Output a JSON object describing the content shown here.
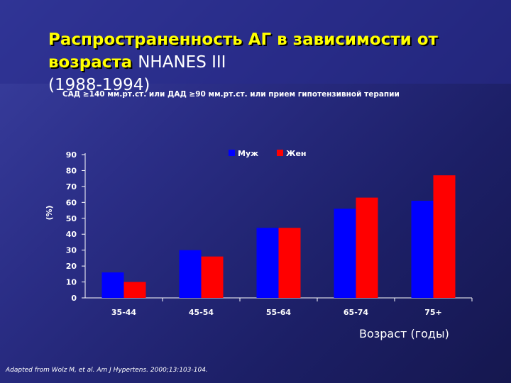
{
  "slide": {
    "title_main": "Распространенность АГ в зависимости от возраста",
    "title_sub": "NHANES III",
    "title_years": "(1988-1994)",
    "criteria": "САД ≥140 мм.рт.ст. или ДАД ≥90 мм.рт.ст. или прием гипотензивной терапии",
    "source": "Adapted from Wolz M, et al. Am J Hypertens. 2000;13:103-104."
  },
  "chart_data": {
    "type": "bar",
    "title": "",
    "xlabel": "Возраст (годы)",
    "ylabel": "(%)",
    "categories": [
      "35-44",
      "45-54",
      "55-64",
      "65-74",
      "75+"
    ],
    "series": [
      {
        "name": "Муж",
        "color": "#0000ff",
        "values": [
          16,
          30,
          44,
          56,
          61
        ]
      },
      {
        "name": "Жен",
        "color": "#ff0000",
        "values": [
          10,
          26,
          44,
          63,
          77
        ]
      }
    ],
    "ylim": [
      0,
      90
    ],
    "yticks": [
      0,
      10,
      20,
      30,
      40,
      50,
      60,
      70,
      80,
      90
    ],
    "grid": false,
    "legend_position": "top"
  }
}
